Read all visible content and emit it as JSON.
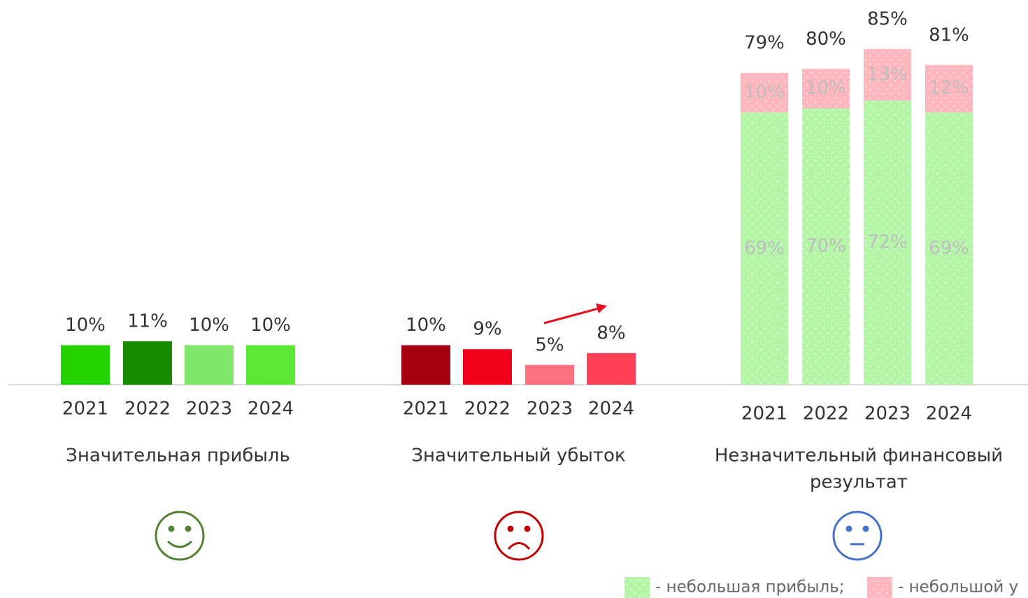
{
  "chart_data": {
    "type": "bar",
    "ylim": [
      0,
      90
    ],
    "groups": [
      {
        "name": "Значительная прибыль",
        "categories": [
          "2021",
          "2022",
          "2023",
          "2024"
        ],
        "values": [
          10,
          11,
          10,
          10
        ],
        "value_labels": [
          "10%",
          "11%",
          "10%",
          "10%"
        ],
        "colors": [
          "#22d300",
          "#178a00",
          "#7fe86a",
          "#5be835"
        ]
      },
      {
        "name": "Значительный убыток",
        "categories": [
          "2021",
          "2022",
          "2023",
          "2024"
        ],
        "values": [
          10,
          9,
          5,
          8
        ],
        "value_labels": [
          "10%",
          "9%",
          "5%",
          "8%"
        ],
        "colors": [
          "#a30012",
          "#f2001c",
          "#ff7080",
          "#ff4055"
        ]
      },
      {
        "name": [
          "Незначительный финансовый",
          "результат"
        ],
        "categories": [
          "2021",
          "2022",
          "2023",
          "2024"
        ],
        "series": [
          {
            "name": "- небольшая прибыль;",
            "color": "#b5f5a8",
            "values": [
              69,
              70,
              72,
              69
            ],
            "value_labels": [
              "69%",
              "70%",
              "72%",
              "69%"
            ]
          },
          {
            "name": "- небольшой у",
            "color": "#ffb6bd",
            "values": [
              10,
              10,
              13,
              12
            ],
            "value_labels": [
              "10%",
              "10%",
              "13%",
              "12%"
            ]
          }
        ],
        "totals": [
          79,
          80,
          85,
          81
        ],
        "total_labels": [
          "79%",
          "80%",
          "85%",
          "81%"
        ]
      }
    ]
  }
}
